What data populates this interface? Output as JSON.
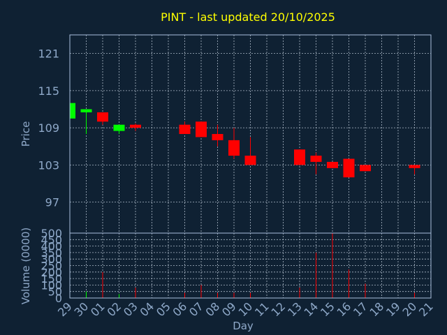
{
  "colors": {
    "background": "#0f2133",
    "title": "#ffff00",
    "up": "#00ff00",
    "down": "#ff0000",
    "text": "#8fa9c9"
  },
  "chart_data": {
    "type": "candlestick",
    "title": "PINT - last updated 20/10/2025",
    "xlabel": "Day",
    "price_ylabel": "Price",
    "volume_ylabel": "Volume (0000)",
    "grid": true,
    "x": [
      "29",
      "30",
      "01",
      "02",
      "03",
      "04",
      "05",
      "06",
      "07",
      "08",
      "09",
      "10",
      "11",
      "12",
      "13",
      "14",
      "15",
      "16",
      "17",
      "18",
      "19",
      "20",
      "21"
    ],
    "price_ylim": [
      92,
      124
    ],
    "price_yticks": [
      97,
      103,
      109,
      115,
      121
    ],
    "volume_ylim": [
      0,
      500
    ],
    "volume_yticks": [
      0,
      50,
      100,
      150,
      200,
      250,
      300,
      350,
      400,
      450,
      500
    ],
    "candles": [
      {
        "x": "29",
        "open": 110.5,
        "high": 113.0,
        "low": 110.5,
        "close": 113.0,
        "volume": 50
      },
      {
        "x": "30",
        "open": 111.5,
        "high": 112.0,
        "low": 108.0,
        "close": 112.0,
        "volume": 50
      },
      {
        "x": "01",
        "open": 111.5,
        "high": 111.5,
        "low": 109.5,
        "close": 110.0,
        "volume": 200
      },
      {
        "x": "02",
        "open": 108.5,
        "high": 109.5,
        "low": 108.0,
        "close": 109.5,
        "volume": 30
      },
      {
        "x": "03",
        "open": 109.5,
        "high": 109.7,
        "low": 108.5,
        "close": 109.0,
        "volume": 80
      },
      {
        "x": "06",
        "open": 109.5,
        "high": 110.0,
        "low": 108.0,
        "close": 108.0,
        "volume": 40
      },
      {
        "x": "07",
        "open": 110.0,
        "high": 110.0,
        "low": 107.5,
        "close": 107.5,
        "volume": 100
      },
      {
        "x": "08",
        "open": 108.0,
        "high": 109.5,
        "low": 106.0,
        "close": 107.0,
        "volume": 40
      },
      {
        "x": "09",
        "open": 107.0,
        "high": 109.0,
        "low": 104.0,
        "close": 104.5,
        "volume": 40
      },
      {
        "x": "10",
        "open": 104.5,
        "high": 107.5,
        "low": 103.0,
        "close": 103.0,
        "volume": 40
      },
      {
        "x": "13",
        "open": 105.5,
        "high": 105.5,
        "low": 103.0,
        "close": 103.0,
        "volume": 80
      },
      {
        "x": "14",
        "open": 104.5,
        "high": 105.0,
        "low": 101.5,
        "close": 103.5,
        "volume": 350
      },
      {
        "x": "15",
        "open": 103.5,
        "high": 103.5,
        "low": 102.5,
        "close": 102.5,
        "volume": 500
      },
      {
        "x": "16",
        "open": 104.0,
        "high": 104.0,
        "low": 101.0,
        "close": 101.0,
        "volume": 220
      },
      {
        "x": "17",
        "open": 103.0,
        "high": 103.0,
        "low": 102.0,
        "close": 102.0,
        "volume": 110
      },
      {
        "x": "20",
        "open": 103.0,
        "high": 103.0,
        "low": 101.5,
        "close": 102.5,
        "volume": 40
      }
    ]
  }
}
